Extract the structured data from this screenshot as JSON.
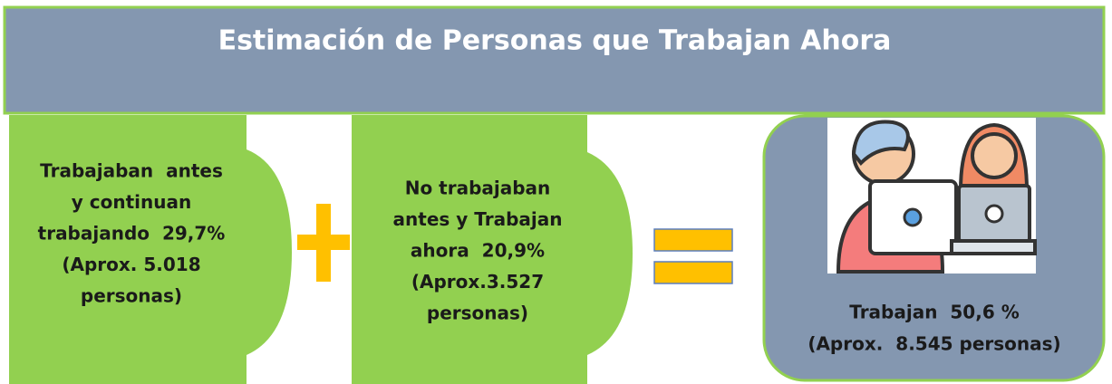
{
  "header": {
    "title": "Estimación de Personas que Trabajan Ahora"
  },
  "boxes": [
    {
      "lines": [
        "Trabajaban  antes",
        "y continuan",
        "trabajando  29,7%",
        "(Aprox. 5.018",
        "personas)"
      ]
    },
    {
      "lines": [
        "No trabajaban",
        "antes y Trabajan",
        "ahora  20,9%",
        "(Aprox.3.527",
        "personas)"
      ]
    },
    {
      "lines": [
        "Trabajan  50,6 %",
        "(Aprox.  8.545 personas)"
      ]
    }
  ]
}
